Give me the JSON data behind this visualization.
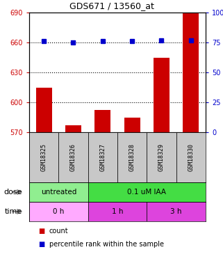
{
  "title": "GDS671 / 13560_at",
  "samples": [
    "GSM18325",
    "GSM18326",
    "GSM18327",
    "GSM18328",
    "GSM18329",
    "GSM18330"
  ],
  "counts": [
    615,
    577,
    592,
    585,
    645,
    690
  ],
  "percentile_ranks": [
    76,
    75,
    76,
    76,
    77,
    77
  ],
  "ylim_left": [
    570,
    690
  ],
  "ylim_right": [
    0,
    100
  ],
  "yticks_left": [
    570,
    600,
    630,
    660,
    690
  ],
  "yticks_right": [
    0,
    25,
    50,
    75,
    100
  ],
  "ytick_right_labels": [
    "0",
    "25",
    "50",
    "75",
    "100%"
  ],
  "bar_color": "#cc0000",
  "dot_color": "#0000cc",
  "dose_color_untreated": "#90ee90",
  "dose_color_treated": "#44dd44",
  "time_color_light": "#ffaaff",
  "time_color_dark": "#dd44dd",
  "dose_labels": [
    "untreated",
    "0.1 uM IAA"
  ],
  "time_labels": [
    "0 h",
    "1 h",
    "3 h"
  ],
  "sample_bg": "#c8c8c8",
  "dose_row_label": "dose",
  "time_row_label": "time",
  "legend_items": [
    [
      "count",
      "#cc0000"
    ],
    [
      "percentile rank within the sample",
      "#0000cc"
    ]
  ]
}
